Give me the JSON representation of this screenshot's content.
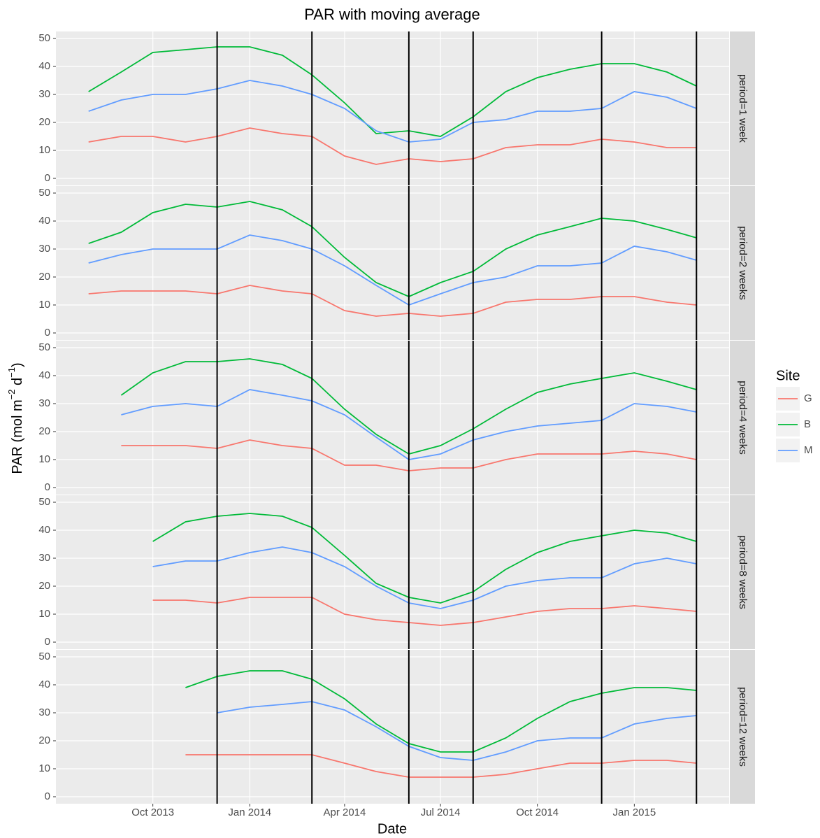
{
  "figure": {
    "title": "PAR with moving average",
    "xlabel": "Date",
    "ylabel": [
      "PAR (mol m",
      "−2",
      " d",
      "−1",
      ")"
    ],
    "legend_title": "Site"
  },
  "chart_data": [
    {
      "type": "line",
      "panel_label": "period=1 week",
      "x": [
        "2013-08",
        "2013-09",
        "2013-10",
        "2013-11",
        "2013-12",
        "2014-01",
        "2014-02",
        "2014-03",
        "2014-04",
        "2014-05",
        "2014-06",
        "2014-07",
        "2014-08",
        "2014-09",
        "2014-10",
        "2014-11",
        "2014-12",
        "2015-01",
        "2015-02",
        "2015-03"
      ],
      "xlim": [
        "2013-07",
        "2015-04"
      ],
      "xticks": [
        {
          "value": "2013-10",
          "label": "Oct 2013"
        },
        {
          "value": "2014-01",
          "label": "Jan 2014"
        },
        {
          "value": "2014-04",
          "label": "Apr 2014"
        },
        {
          "value": "2014-07",
          "label": "Jul 2014"
        },
        {
          "value": "2014-10",
          "label": "Oct 2014"
        },
        {
          "value": "2015-01",
          "label": "Jan 2015"
        }
      ],
      "ylim": [
        -2.5,
        52.5
      ],
      "yticks": [
        0,
        10,
        20,
        30,
        40,
        50
      ],
      "vlines": [
        "2013-12",
        "2014-03",
        "2014-06",
        "2014-08",
        "2014-12",
        "2015-03"
      ],
      "series": [
        {
          "name": "G",
          "color": "#F8766D",
          "values": [
            13,
            15,
            15,
            13,
            15,
            18,
            16,
            15,
            8,
            5,
            7,
            6,
            7,
            11,
            12,
            12,
            14,
            13,
            11,
            11
          ]
        },
        {
          "name": "B",
          "color": "#00BA38",
          "values": [
            31,
            38,
            45,
            46,
            47,
            47,
            44,
            37,
            27,
            16,
            17,
            15,
            22,
            31,
            36,
            39,
            41,
            41,
            38,
            33
          ]
        },
        {
          "name": "M",
          "color": "#619CFF",
          "values": [
            24,
            28,
            30,
            30,
            32,
            35,
            33,
            30,
            25,
            17,
            13,
            14,
            20,
            21,
            24,
            24,
            25,
            31,
            29,
            25
          ]
        }
      ]
    },
    {
      "type": "line",
      "panel_label": "period=2 weeks",
      "x": [
        "2013-08",
        "2013-09",
        "2013-10",
        "2013-11",
        "2013-12",
        "2014-01",
        "2014-02",
        "2014-03",
        "2014-04",
        "2014-05",
        "2014-06",
        "2014-07",
        "2014-08",
        "2014-09",
        "2014-10",
        "2014-11",
        "2014-12",
        "2015-01",
        "2015-02",
        "2015-03"
      ],
      "xlim": [
        "2013-07",
        "2015-04"
      ],
      "xticks": [
        {
          "value": "2013-10",
          "label": "Oct 2013"
        },
        {
          "value": "2014-01",
          "label": "Jan 2014"
        },
        {
          "value": "2014-04",
          "label": "Apr 2014"
        },
        {
          "value": "2014-07",
          "label": "Jul 2014"
        },
        {
          "value": "2014-10",
          "label": "Oct 2014"
        },
        {
          "value": "2015-01",
          "label": "Jan 2015"
        }
      ],
      "ylim": [
        -2.5,
        52.5
      ],
      "yticks": [
        0,
        10,
        20,
        30,
        40,
        50
      ],
      "vlines": [
        "2013-12",
        "2014-03",
        "2014-06",
        "2014-08",
        "2014-12",
        "2015-03"
      ],
      "series": [
        {
          "name": "G",
          "color": "#F8766D",
          "values": [
            14,
            15,
            15,
            15,
            14,
            17,
            15,
            14,
            8,
            6,
            7,
            6,
            7,
            11,
            12,
            12,
            13,
            13,
            11,
            10
          ]
        },
        {
          "name": "B",
          "color": "#00BA38",
          "values": [
            32,
            36,
            43,
            46,
            45,
            47,
            44,
            38,
            27,
            18,
            13,
            18,
            22,
            30,
            35,
            38,
            41,
            40,
            37,
            34
          ]
        },
        {
          "name": "M",
          "color": "#619CFF",
          "values": [
            25,
            28,
            30,
            30,
            30,
            35,
            33,
            30,
            24,
            17,
            10,
            14,
            18,
            20,
            24,
            24,
            25,
            31,
            29,
            26
          ]
        }
      ]
    },
    {
      "type": "line",
      "panel_label": "period=4 weeks",
      "x": [
        "2013-08",
        "2013-09",
        "2013-10",
        "2013-11",
        "2013-12",
        "2014-01",
        "2014-02",
        "2014-03",
        "2014-04",
        "2014-05",
        "2014-06",
        "2014-07",
        "2014-08",
        "2014-09",
        "2014-10",
        "2014-11",
        "2014-12",
        "2015-01",
        "2015-02",
        "2015-03"
      ],
      "xlim": [
        "2013-07",
        "2015-04"
      ],
      "xticks": [
        {
          "value": "2013-10",
          "label": "Oct 2013"
        },
        {
          "value": "2014-01",
          "label": "Jan 2014"
        },
        {
          "value": "2014-04",
          "label": "Apr 2014"
        },
        {
          "value": "2014-07",
          "label": "Jul 2014"
        },
        {
          "value": "2014-10",
          "label": "Oct 2014"
        },
        {
          "value": "2015-01",
          "label": "Jan 2015"
        }
      ],
      "ylim": [
        -2.5,
        52.5
      ],
      "yticks": [
        0,
        10,
        20,
        30,
        40,
        50
      ],
      "vlines": [
        "2013-12",
        "2014-03",
        "2014-06",
        "2014-08",
        "2014-12",
        "2015-03"
      ],
      "series": [
        {
          "name": "G",
          "color": "#F8766D",
          "values": [
            null,
            15,
            15,
            15,
            14,
            17,
            15,
            14,
            8,
            8,
            6,
            7,
            7,
            10,
            12,
            12,
            12,
            13,
            12,
            10
          ]
        },
        {
          "name": "B",
          "color": "#00BA38",
          "values": [
            null,
            33,
            41,
            45,
            45,
            46,
            44,
            39,
            28,
            19,
            12,
            15,
            21,
            28,
            34,
            37,
            39,
            41,
            38,
            35
          ]
        },
        {
          "name": "M",
          "color": "#619CFF",
          "values": [
            null,
            26,
            29,
            30,
            29,
            35,
            33,
            31,
            26,
            18,
            10,
            12,
            17,
            20,
            22,
            23,
            24,
            30,
            29,
            27
          ]
        }
      ]
    },
    {
      "type": "line",
      "panel_label": "period=8 weeks",
      "x": [
        "2013-08",
        "2013-09",
        "2013-10",
        "2013-11",
        "2013-12",
        "2014-01",
        "2014-02",
        "2014-03",
        "2014-04",
        "2014-05",
        "2014-06",
        "2014-07",
        "2014-08",
        "2014-09",
        "2014-10",
        "2014-11",
        "2014-12",
        "2015-01",
        "2015-02",
        "2015-03"
      ],
      "xlim": [
        "2013-07",
        "2015-04"
      ],
      "xticks": [
        {
          "value": "2013-10",
          "label": "Oct 2013"
        },
        {
          "value": "2014-01",
          "label": "Jan 2014"
        },
        {
          "value": "2014-04",
          "label": "Apr 2014"
        },
        {
          "value": "2014-07",
          "label": "Jul 2014"
        },
        {
          "value": "2014-10",
          "label": "Oct 2014"
        },
        {
          "value": "2015-01",
          "label": "Jan 2015"
        }
      ],
      "ylim": [
        -2.5,
        52.5
      ],
      "yticks": [
        0,
        10,
        20,
        30,
        40,
        50
      ],
      "vlines": [
        "2013-12",
        "2014-03",
        "2014-06",
        "2014-08",
        "2014-12",
        "2015-03"
      ],
      "series": [
        {
          "name": "G",
          "color": "#F8766D",
          "values": [
            null,
            null,
            15,
            15,
            14,
            16,
            16,
            16,
            10,
            8,
            7,
            6,
            7,
            9,
            11,
            12,
            12,
            13,
            12,
            11
          ]
        },
        {
          "name": "B",
          "color": "#00BA38",
          "values": [
            null,
            null,
            36,
            43,
            45,
            46,
            45,
            41,
            31,
            21,
            16,
            14,
            18,
            26,
            32,
            36,
            38,
            40,
            39,
            36
          ]
        },
        {
          "name": "M",
          "color": "#619CFF",
          "values": [
            null,
            null,
            27,
            29,
            29,
            32,
            34,
            32,
            27,
            20,
            14,
            12,
            15,
            20,
            22,
            23,
            23,
            28,
            30,
            28
          ]
        }
      ]
    },
    {
      "type": "line",
      "panel_label": "period=12 weeks",
      "x": [
        "2013-08",
        "2013-09",
        "2013-10",
        "2013-11",
        "2013-12",
        "2014-01",
        "2014-02",
        "2014-03",
        "2014-04",
        "2014-05",
        "2014-06",
        "2014-07",
        "2014-08",
        "2014-09",
        "2014-10",
        "2014-11",
        "2014-12",
        "2015-01",
        "2015-02",
        "2015-03"
      ],
      "xlim": [
        "2013-07",
        "2015-04"
      ],
      "xticks": [
        {
          "value": "2013-10",
          "label": "Oct 2013"
        },
        {
          "value": "2014-01",
          "label": "Jan 2014"
        },
        {
          "value": "2014-04",
          "label": "Apr 2014"
        },
        {
          "value": "2014-07",
          "label": "Jul 2014"
        },
        {
          "value": "2014-10",
          "label": "Oct 2014"
        },
        {
          "value": "2015-01",
          "label": "Jan 2015"
        }
      ],
      "ylim": [
        -2.5,
        52.5
      ],
      "yticks": [
        0,
        10,
        20,
        30,
        40,
        50
      ],
      "vlines": [
        "2013-12",
        "2014-03",
        "2014-06",
        "2014-08",
        "2014-12",
        "2015-03"
      ],
      "series": [
        {
          "name": "G",
          "color": "#F8766D",
          "values": [
            null,
            null,
            null,
            15,
            15,
            15,
            15,
            15,
            12,
            9,
            7,
            7,
            7,
            8,
            10,
            12,
            12,
            13,
            13,
            12
          ]
        },
        {
          "name": "B",
          "color": "#00BA38",
          "values": [
            null,
            null,
            null,
            39,
            43,
            45,
            45,
            42,
            35,
            26,
            19,
            16,
            16,
            21,
            28,
            34,
            37,
            39,
            39,
            38
          ]
        },
        {
          "name": "M",
          "color": "#619CFF",
          "values": [
            null,
            null,
            null,
            null,
            30,
            32,
            33,
            34,
            31,
            25,
            18,
            14,
            13,
            16,
            20,
            21,
            21,
            26,
            28,
            29
          ]
        }
      ]
    }
  ]
}
